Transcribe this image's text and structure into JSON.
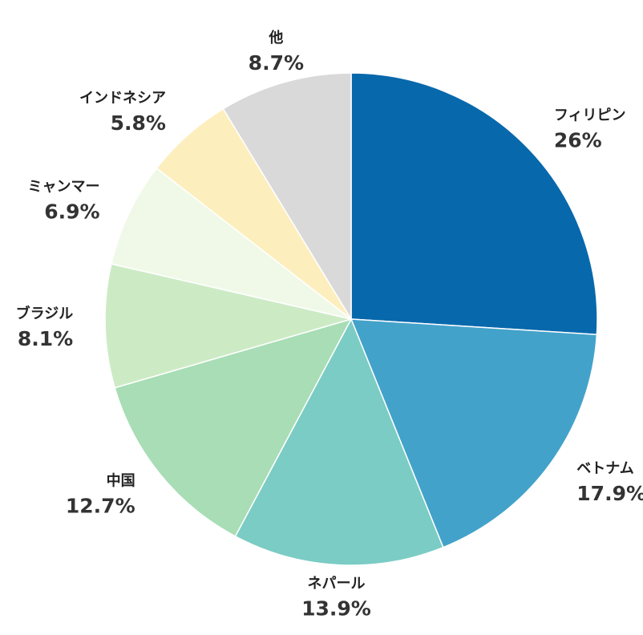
{
  "chart_data": {
    "type": "pie",
    "categories": [
      "フィリピン",
      "ベトナム",
      "ネパール",
      "中国",
      "ブラジル",
      "ミャンマー",
      "インドネシア",
      "他"
    ],
    "values": [
      26,
      17.9,
      13.9,
      12.7,
      8.1,
      6.9,
      5.8,
      8.7
    ],
    "value_labels": [
      "26%",
      "17.9%",
      "13.9%",
      "12.7%",
      "8.1%",
      "6.9%",
      "5.8%",
      "8.7%"
    ],
    "colors": [
      "#0868ac",
      "#43a2ca",
      "#7bccc4",
      "#a8ddb5",
      "#ccebc5",
      "#f0f9e8",
      "#fdeebd",
      "#d9d9d9"
    ]
  }
}
